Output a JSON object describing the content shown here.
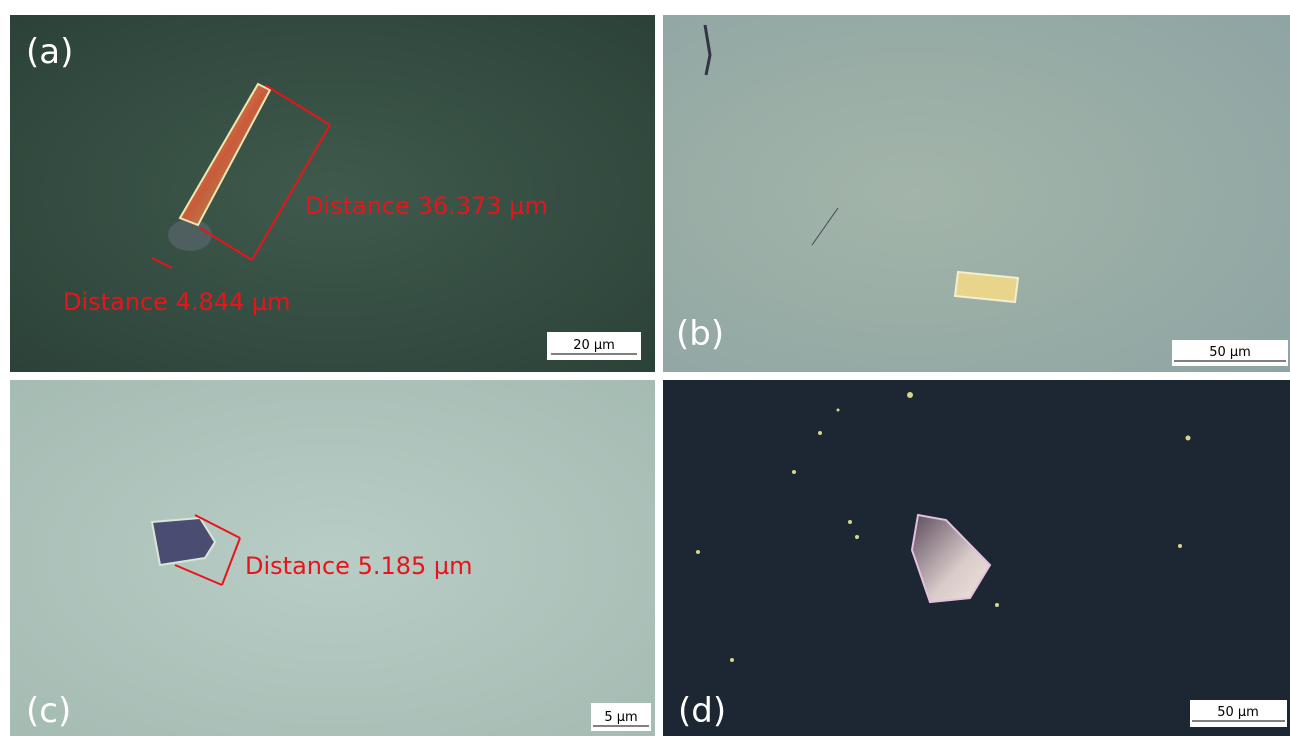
{
  "panels": [
    {
      "label": "(a)",
      "scale_bar": "20 µm",
      "annotations": [
        "Distance 36.373 µm",
        "Distance 4.844 µm"
      ]
    },
    {
      "label": "(b)",
      "scale_bar": "50 µm"
    },
    {
      "label": "(c)",
      "scale_bar": "5 µm",
      "annotations": [
        "Distance 5.185 µm"
      ]
    },
    {
      "label": "(d)",
      "scale_bar": "50 µm"
    }
  ]
}
